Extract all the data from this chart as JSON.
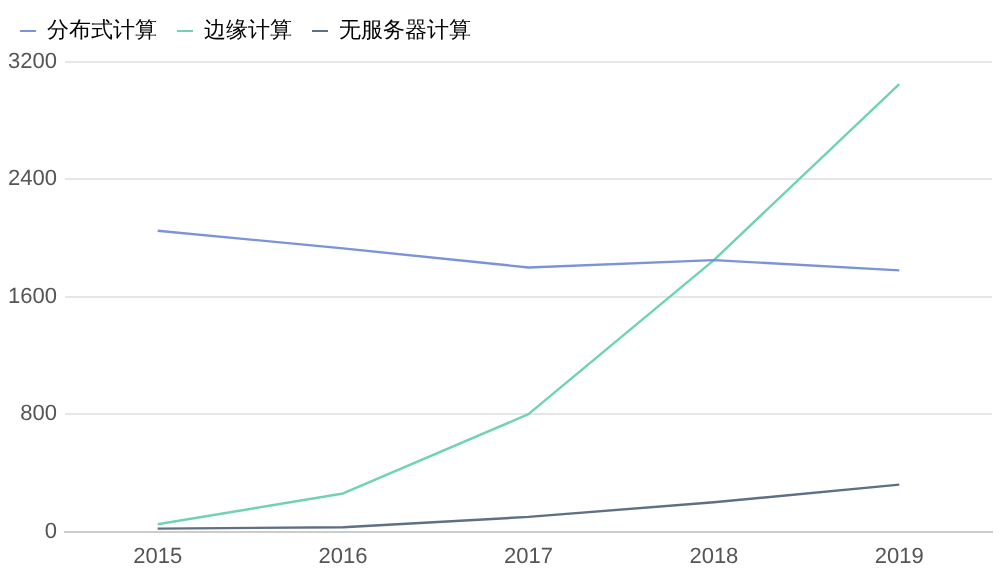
{
  "chart_data": {
    "type": "line",
    "categories": [
      "2015",
      "2016",
      "2017",
      "2018",
      "2019"
    ],
    "series": [
      {
        "name": "分布式计算",
        "color": "#7b93d9",
        "values": [
          2050,
          1930,
          1800,
          1850,
          1780
        ]
      },
      {
        "name": "边缘计算",
        "color": "#6fd3b0",
        "values": [
          50,
          260,
          800,
          1850,
          3050
        ]
      },
      {
        "name": "无服务器计算",
        "color": "#5f6f86",
        "values": [
          20,
          30,
          100,
          200,
          320
        ]
      }
    ],
    "ylim": [
      0,
      3200
    ],
    "yticks": [
      0,
      800,
      1600,
      2400,
      3200
    ],
    "grid": "y",
    "legend": "top left",
    "marker": "none",
    "line_style": "solid"
  }
}
